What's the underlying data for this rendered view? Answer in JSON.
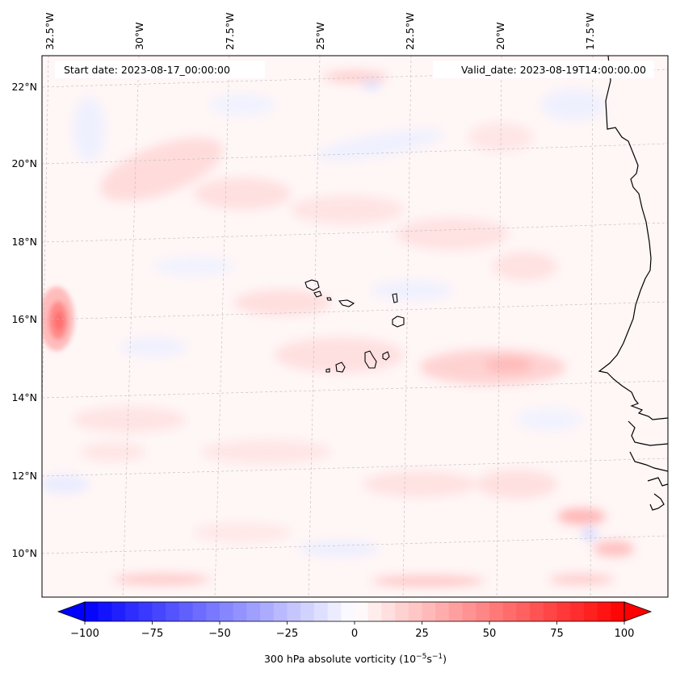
{
  "map": {
    "start_date_text": "Start date: 2023-08-17_00:00:00",
    "valid_date_text": "Valid_date: 2023-08-19T14:00:00.00",
    "lon_labels": [
      "32.5°W",
      "30°W",
      "27.5°W",
      "25°W",
      "22.5°W",
      "20°W",
      "17.5°W"
    ],
    "lat_labels": [
      "22°N",
      "20°N",
      "18°N",
      "16°N",
      "14°N",
      "12°N",
      "10°N"
    ],
    "extent": {
      "lon_min": -32.5,
      "lon_max": -15.3,
      "lat_min": 8.9,
      "lat_max": 22.8
    }
  },
  "colorbar": {
    "label_main": "300 hPa absolute vorticity (10",
    "label_exp1": "−5",
    "label_mid": "s",
    "label_exp2": "−1",
    "label_end": ")",
    "ticks": [
      "−100",
      "−75",
      "−50",
      "−25",
      "0",
      "25",
      "50",
      "75",
      "100"
    ],
    "range": [
      -100,
      100
    ],
    "levels": 40,
    "colormap": "bwr",
    "colors": {
      "min": "#0000ff",
      "mid": "#ffffff",
      "max": "#ff0000"
    }
  }
}
